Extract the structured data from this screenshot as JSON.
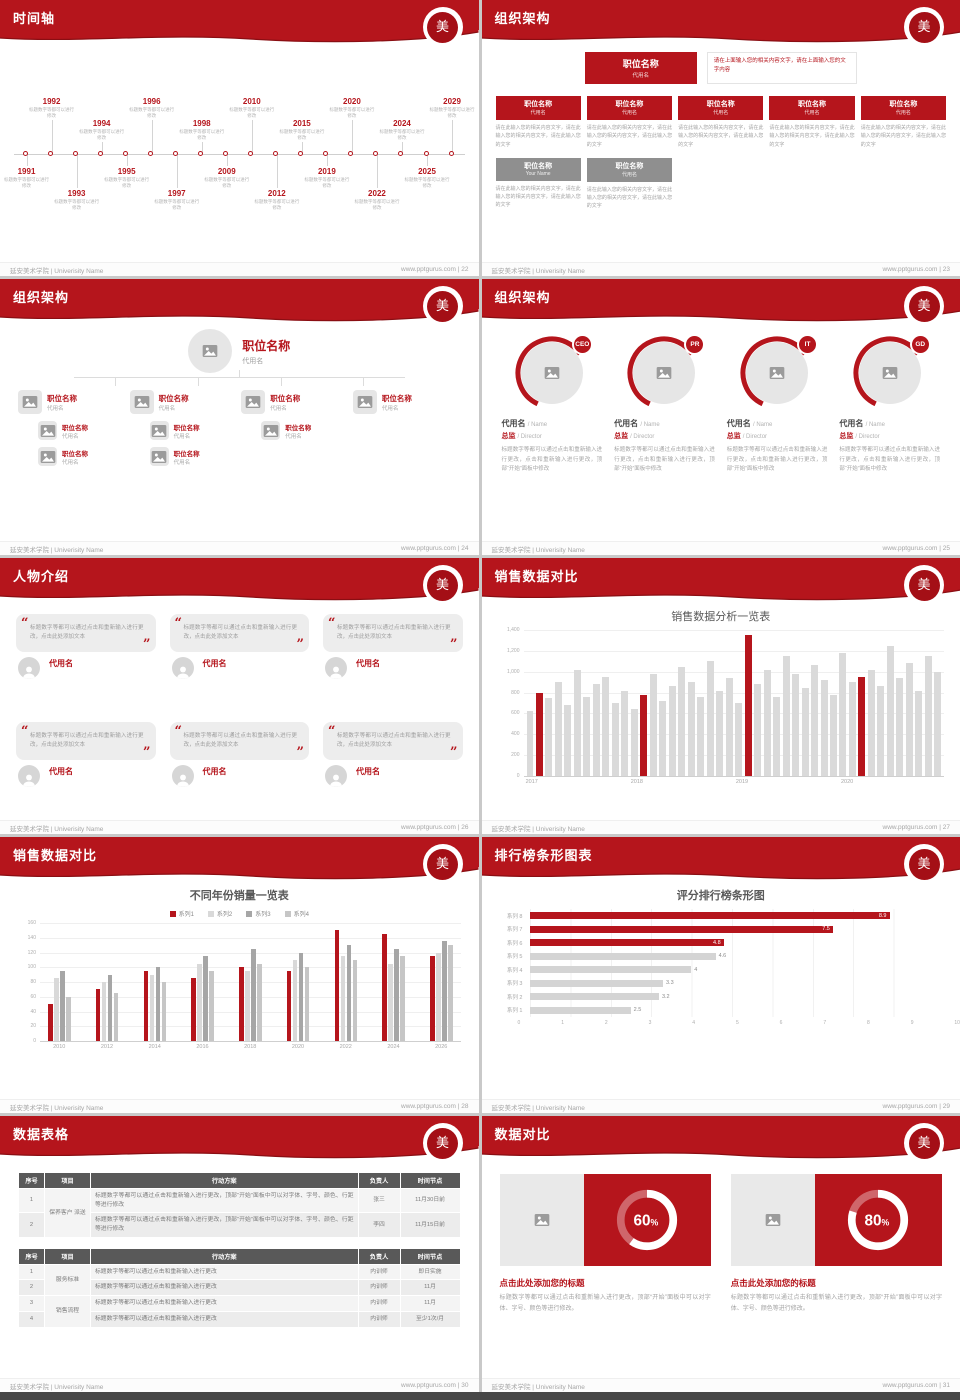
{
  "common": {
    "footer_left": "延安美术学院 | Univerisity Name",
    "footer_site": "www.pptgurus.com",
    "seal_char": "美",
    "colors": {
      "accent": "#b5151c",
      "accent_dark": "#8a0e13",
      "bar_gray": "#dadada"
    }
  },
  "slides": {
    "s1": {
      "title": "时间轴",
      "page": "22",
      "caption": "标题数字等都可以进行修改",
      "items": [
        {
          "year": "1991",
          "side": "bottom",
          "level": 0
        },
        {
          "year": "1992",
          "side": "top",
          "level": 1
        },
        {
          "year": "1993",
          "side": "bottom",
          "level": 1
        },
        {
          "year": "1994",
          "side": "top",
          "level": 0
        },
        {
          "year": "1995",
          "side": "bottom",
          "level": 0
        },
        {
          "year": "1996",
          "side": "top",
          "level": 1
        },
        {
          "year": "1997",
          "side": "bottom",
          "level": 1
        },
        {
          "year": "1998",
          "side": "top",
          "level": 0
        },
        {
          "year": "2009",
          "side": "bottom",
          "level": 0
        },
        {
          "year": "2010",
          "side": "top",
          "level": 1
        },
        {
          "year": "2012",
          "side": "bottom",
          "level": 1
        },
        {
          "year": "2015",
          "side": "top",
          "level": 0
        },
        {
          "year": "2019",
          "side": "bottom",
          "level": 0
        },
        {
          "year": "2020",
          "side": "top",
          "level": 1
        },
        {
          "year": "2022",
          "side": "bottom",
          "level": 1
        },
        {
          "year": "2024",
          "side": "top",
          "level": 0
        },
        {
          "year": "2025",
          "side": "bottom",
          "level": 0
        },
        {
          "year": "2029",
          "side": "top",
          "level": 1
        }
      ]
    },
    "s2": {
      "title": "组织架构",
      "page": "23",
      "top_box": {
        "title": "职位名称",
        "sub": "代用名"
      },
      "note": "请在上面输入您的相关内容文字，请在上面输入您的文字内容",
      "row1": [
        {
          "title": "职位名称",
          "sub": "代用名"
        },
        {
          "title": "职位名称",
          "sub": "代用名"
        },
        {
          "title": "职位名称",
          "sub": "代用名"
        },
        {
          "title": "职位名称",
          "sub": "代用名"
        },
        {
          "title": "职位名称",
          "sub": "代用名"
        }
      ],
      "row1_desc": "请在此输入您的相关内容文字，请在此输入您的相关内容文字，请在此输入您的文字",
      "row2": [
        {
          "title": "职位名称",
          "sub": "Your Name"
        },
        {
          "title": "职位名称",
          "sub": "代用名"
        }
      ]
    },
    "s3": {
      "title": "组织架构",
      "page": "24",
      "top": {
        "title": "职位名称",
        "sub": "代用名"
      },
      "col_count": 4,
      "item": {
        "title": "职位名称",
        "sub": "代用名"
      },
      "sub_rows": [
        3,
        2
      ]
    },
    "s4": {
      "title": "组织架构",
      "page": "25",
      "profiles": [
        {
          "badge": "CEO"
        },
        {
          "badge": "PR"
        },
        {
          "badge": "IT"
        },
        {
          "badge": "GD"
        }
      ],
      "name": "代用名",
      "name_en": "/ Name",
      "role": "总监",
      "role_en": "/ Director",
      "desc": "标题数字等都可以通过点击和重新输入进行更改，点击和重新输入进行更改，顶部“开始”面板中修改"
    },
    "s5": {
      "title": "人物介绍",
      "page": "26",
      "card_text": "标题数字等都可以通过点击和重新输入进行更改，点击此处添加文本",
      "names": [
        "代用名",
        "代用名",
        "代用名",
        "代用名",
        "代用名",
        "代用名"
      ]
    },
    "s6": {
      "title": "销售数据对比",
      "page": "27",
      "chart": {
        "type": "bar",
        "chart_title": "销售数据分析一览表",
        "y_labels": [
          "1,400",
          "1,200",
          "1,000",
          "800",
          "600",
          "400",
          "200",
          "0"
        ],
        "ymax": 1400,
        "x_labels": [
          "2017",
          "2018",
          "2019",
          "2020"
        ],
        "values": [
          620,
          800,
          750,
          900,
          680,
          1020,
          760,
          880,
          950,
          700,
          820,
          640,
          780,
          980,
          720,
          860,
          1050,
          900,
          760,
          1100,
          820,
          940,
          700,
          1350,
          880,
          1020,
          760,
          1150,
          980,
          840,
          1060,
          920,
          780,
          1180,
          900,
          950,
          1020,
          860,
          1250,
          940,
          1080,
          820,
          1150,
          1000
        ],
        "red_indices": [
          1,
          12,
          23,
          35
        ]
      }
    },
    "s7": {
      "title": "销售数据对比",
      "page": "28",
      "chart": {
        "type": "bar",
        "chart_title": "不同年份销量一览表",
        "series": [
          {
            "name": "系列1",
            "color": "#b5151c"
          },
          {
            "name": "系列2",
            "color": "#d9d9d9"
          },
          {
            "name": "系列3",
            "color": "#a6a6a6"
          },
          {
            "name": "系列4",
            "color": "#c6c6c6"
          }
        ],
        "categories": [
          "2010",
          "2012",
          "2014",
          "2016",
          "2018",
          "2020",
          "2022",
          "2024",
          "2026"
        ],
        "values": [
          [
            50,
            85,
            95,
            60
          ],
          [
            70,
            80,
            90,
            65
          ],
          [
            95,
            90,
            100,
            80
          ],
          [
            85,
            105,
            115,
            95
          ],
          [
            100,
            95,
            125,
            105
          ],
          [
            95,
            110,
            120,
            100
          ],
          [
            150,
            115,
            130,
            110
          ],
          [
            145,
            105,
            125,
            115
          ],
          [
            115,
            120,
            135,
            130
          ]
        ],
        "y_labels": [
          "160",
          "140",
          "120",
          "100",
          "80",
          "60",
          "40",
          "20",
          "0"
        ],
        "ymax": 160
      }
    },
    "s8": {
      "title": "排行榜条形图表",
      "page": "29",
      "chart": {
        "type": "bar",
        "chart_title": "评分排行榜条形图",
        "rows": [
          {
            "label": "系列 8",
            "value": 8.9,
            "red": true
          },
          {
            "label": "系列 7",
            "value": 7.5,
            "red": true
          },
          {
            "label": "系列 6",
            "value": 4.8,
            "red": true
          },
          {
            "label": "系列 5",
            "value": 4.6,
            "red": false
          },
          {
            "label": "系列 4",
            "value": 4,
            "red": false
          },
          {
            "label": "系列 3",
            "value": 3.3,
            "red": false
          },
          {
            "label": "系列 2",
            "value": 3.2,
            "red": false
          },
          {
            "label": "系列 1",
            "value": 2.5,
            "red": false
          }
        ],
        "x_labels": [
          "0",
          "1",
          "2",
          "3",
          "4",
          "5",
          "6",
          "7",
          "8",
          "9",
          "10"
        ],
        "xmax": 10
      }
    },
    "s9": {
      "title": "数据表格",
      "page": "30",
      "tables": [
        {
          "headers": [
            "序号",
            "项目",
            "行动方案",
            "负责人",
            "时间节点"
          ],
          "rows": [
            {
              "num": "1",
              "proj": "保养客户 派送",
              "span": 2,
              "plan": "标题数字等都可以通过点击和重新输入进行更改，顶部“开始”面板中可以对字体、字号、颜色、行距等进行修改",
              "owner": "张三",
              "time": "11月30日前"
            },
            {
              "num": "2",
              "plan": "标题数字等都可以通过点击和重新输入进行更改，顶部“开始”面板中可以对字体、字号、颜色、行距等进行修改",
              "owner": "李四",
              "time": "11月15日前"
            }
          ]
        },
        {
          "headers": [
            "序号",
            "项目",
            "行动方案",
            "负责人",
            "时间节点"
          ],
          "rows": [
            {
              "num": "1",
              "proj": "服务标准",
              "span": 2,
              "plan": "标题数字等都可以通过点击和重新输入进行更改",
              "owner": "内训师",
              "time": "即日实施"
            },
            {
              "num": "2",
              "plan": "标题数字等都可以通过点击和重新输入进行更改",
              "owner": "内训师",
              "time": "11月"
            },
            {
              "num": "3",
              "proj": "销售流程",
              "span": 2,
              "plan": "标题数字等都可以通过点击和重新输入进行更改",
              "owner": "内训师",
              "time": "11月"
            },
            {
              "num": "4",
              "plan": "标题数字等都可以通过点击和重新输入进行更改",
              "owner": "内训师",
              "time": "至少1次/月"
            }
          ]
        }
      ]
    },
    "s10": {
      "title": "数据对比",
      "page": "31",
      "heading": "点击此处添加您的标题",
      "desc": "标题数字等都可以通过点击和重新输入进行更改，顶部“开始”面板中可以对字体、字号、颜色等进行修改。",
      "panels": [
        {
          "pct": 60
        },
        {
          "pct": 80
        }
      ]
    }
  }
}
